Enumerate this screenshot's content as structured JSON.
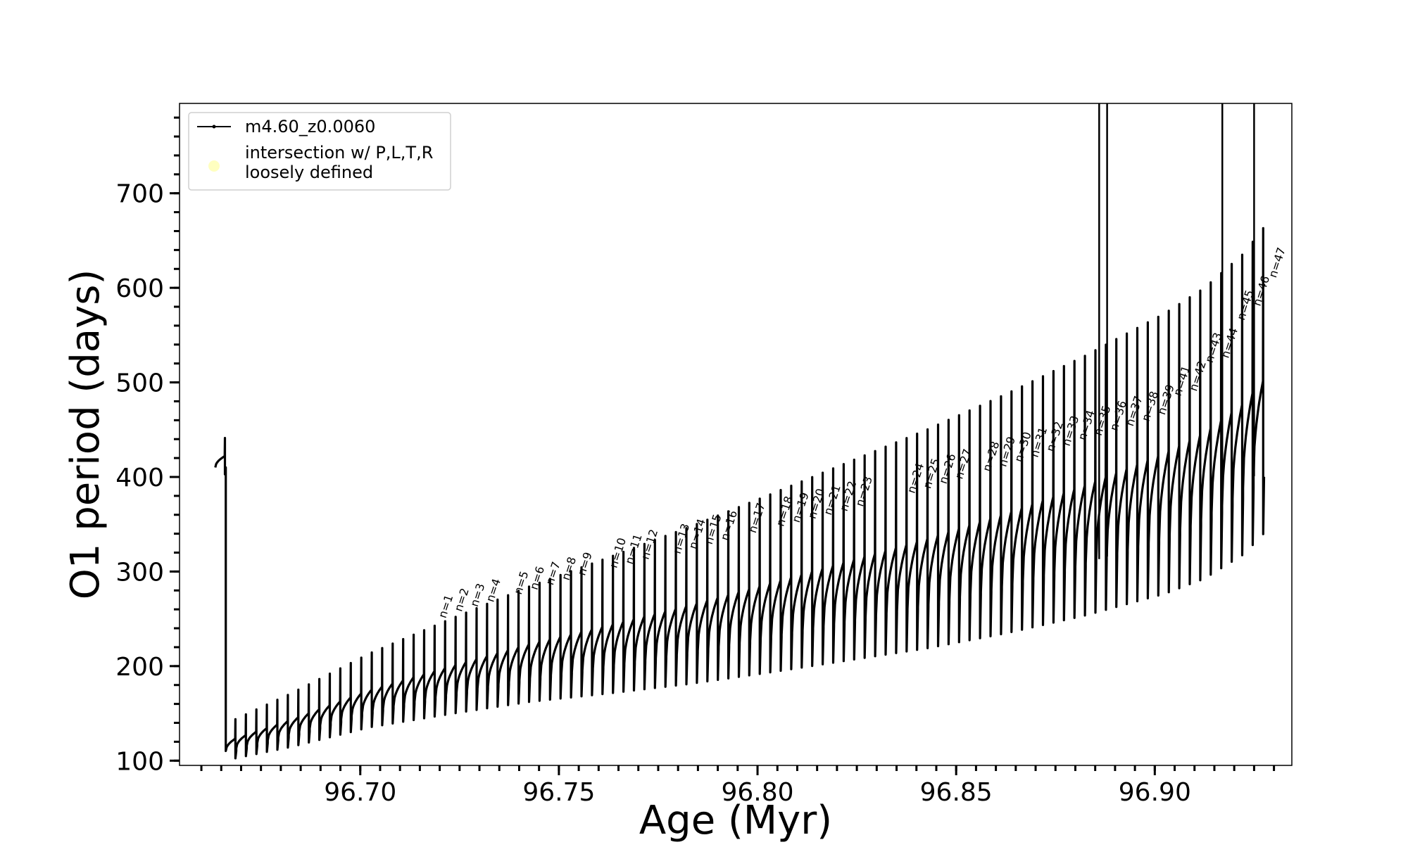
{
  "chart_data": {
    "type": "line",
    "title": "",
    "xlabel": "Age (Myr)",
    "ylabel": "O1 period (days)",
    "xlim": [
      96.6545,
      96.9345
    ],
    "ylim": [
      95,
      795
    ],
    "x_ticks": [
      96.7,
      96.75,
      96.8,
      96.85,
      96.9
    ],
    "x_tick_labels": [
      "96.70",
      "96.75",
      "96.80",
      "96.85",
      "96.90"
    ],
    "x_minor_step": 0.005,
    "y_ticks": [
      100,
      200,
      300,
      400,
      500,
      600,
      700
    ],
    "y_tick_labels": [
      "100",
      "200",
      "300",
      "400",
      "500",
      "600",
      "700"
    ],
    "y_minor_step": 20,
    "legend_position": "top-left",
    "legend": [
      {
        "label": "m4.60_z0.0060",
        "marker": "line-with-dot",
        "color": "#000000"
      },
      {
        "label": "intersection w/ P,L,T,R\nloosely defined",
        "marker": "circle",
        "color": "#ffffc0"
      }
    ],
    "series": [
      {
        "name": "m4.60_z0.0060",
        "color": "#000000",
        "description_of_shape": "thermal pulse oscillations",
        "x_start": 96.6635,
        "x_end": 96.9275,
        "base_trend_points": [
          [
            96.664,
            108
          ],
          [
            96.68,
            125
          ],
          [
            96.7,
            150
          ],
          [
            96.72,
            168
          ],
          [
            96.74,
            185
          ],
          [
            96.76,
            198
          ],
          [
            96.78,
            212
          ],
          [
            96.8,
            228
          ],
          [
            96.82,
            245
          ],
          [
            96.84,
            262
          ],
          [
            96.86,
            282
          ],
          [
            96.88,
            305
          ],
          [
            96.9,
            332
          ],
          [
            96.91,
            350
          ],
          [
            96.92,
            378
          ],
          [
            96.927,
            410
          ]
        ],
        "pulse_count": 100
      }
    ],
    "vertical_lines": [
      96.886,
      96.888,
      96.917,
      96.925
    ],
    "pulse_labels": [
      {
        "text": "n=1",
        "x": 96.7215,
        "y": 250
      },
      {
        "text": "n=2",
        "x": 96.7255,
        "y": 257
      },
      {
        "text": "n=3",
        "x": 96.7295,
        "y": 262
      },
      {
        "text": "n=4",
        "x": 96.7335,
        "y": 267
      },
      {
        "text": "n=5",
        "x": 96.7405,
        "y": 275
      },
      {
        "text": "n=6",
        "x": 96.7445,
        "y": 280
      },
      {
        "text": "n=7",
        "x": 96.7485,
        "y": 285
      },
      {
        "text": "n=8",
        "x": 96.7525,
        "y": 290
      },
      {
        "text": "n=9",
        "x": 96.7565,
        "y": 295
      },
      {
        "text": "n=10",
        "x": 96.7645,
        "y": 303
      },
      {
        "text": "n=11",
        "x": 96.7685,
        "y": 307
      },
      {
        "text": "n=12",
        "x": 96.7725,
        "y": 312
      },
      {
        "text": "n=13",
        "x": 96.7805,
        "y": 318
      },
      {
        "text": "n=14",
        "x": 96.7845,
        "y": 323
      },
      {
        "text": "n=15",
        "x": 96.7885,
        "y": 328
      },
      {
        "text": "n=16",
        "x": 96.7925,
        "y": 332
      },
      {
        "text": "n=17",
        "x": 96.7995,
        "y": 340
      },
      {
        "text": "n=18",
        "x": 96.8065,
        "y": 347
      },
      {
        "text": "n=19",
        "x": 96.8105,
        "y": 351
      },
      {
        "text": "n=20",
        "x": 96.8145,
        "y": 355
      },
      {
        "text": "n=21",
        "x": 96.8185,
        "y": 359
      },
      {
        "text": "n=22",
        "x": 96.8225,
        "y": 363
      },
      {
        "text": "n=23",
        "x": 96.8265,
        "y": 368
      },
      {
        "text": "n=24",
        "x": 96.8395,
        "y": 382
      },
      {
        "text": "n=25",
        "x": 96.8435,
        "y": 387
      },
      {
        "text": "n=26",
        "x": 96.8475,
        "y": 392
      },
      {
        "text": "n=27",
        "x": 96.8515,
        "y": 397
      },
      {
        "text": "n=28",
        "x": 96.8585,
        "y": 405
      },
      {
        "text": "n=29",
        "x": 96.8625,
        "y": 410
      },
      {
        "text": "n=30",
        "x": 96.8665,
        "y": 415
      },
      {
        "text": "n=31",
        "x": 96.8705,
        "y": 420
      },
      {
        "text": "n=32",
        "x": 96.8745,
        "y": 426
      },
      {
        "text": "n=33",
        "x": 96.8785,
        "y": 432
      },
      {
        "text": "n=34",
        "x": 96.8825,
        "y": 438
      },
      {
        "text": "n=35",
        "x": 96.8865,
        "y": 443
      },
      {
        "text": "n=36",
        "x": 96.8905,
        "y": 448
      },
      {
        "text": "n=37",
        "x": 96.8945,
        "y": 453
      },
      {
        "text": "n=38",
        "x": 96.8985,
        "y": 458
      },
      {
        "text": "n=39",
        "x": 96.9025,
        "y": 465
      },
      {
        "text": "n=41",
        "x": 96.9065,
        "y": 485
      },
      {
        "text": "n=42",
        "x": 96.9105,
        "y": 490
      },
      {
        "text": "n=43",
        "x": 96.9145,
        "y": 520
      },
      {
        "text": "n=44",
        "x": 96.9185,
        "y": 525
      },
      {
        "text": "n=45",
        "x": 96.9225,
        "y": 565
      },
      {
        "text": "n=46",
        "x": 96.9265,
        "y": 580
      },
      {
        "text": "n=47",
        "x": 96.9305,
        "y": 610
      }
    ]
  }
}
